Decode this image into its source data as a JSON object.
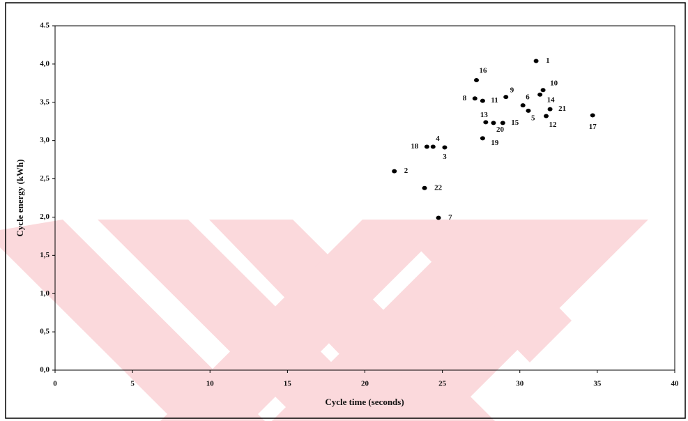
{
  "chart_data": {
    "type": "scatter",
    "x_label": "Cycle time (seconds)",
    "y_label": "Cycle energy (kWh)",
    "x": [
      31.05,
      21.9,
      25.15,
      24.4,
      30.55,
      30.2,
      24.75,
      27.1,
      29.1,
      31.5,
      27.6,
      31.7,
      27.8,
      31.3,
      28.9,
      27.2,
      34.7,
      24.0,
      27.6,
      28.3,
      31.95,
      23.85
    ],
    "values": [
      4.04,
      2.6,
      2.91,
      2.92,
      3.39,
      3.46,
      1.99,
      3.55,
      3.57,
      3.66,
      3.52,
      3.32,
      3.24,
      3.6,
      3.23,
      3.79,
      3.33,
      2.92,
      3.03,
      3.23,
      3.41,
      2.38
    ],
    "point_labels": [
      "1",
      "2",
      "3",
      "4",
      "5",
      "6",
      "7",
      "8",
      "9",
      "10",
      "11",
      "12",
      "13",
      "14",
      "15",
      "16",
      "17",
      "18",
      "19",
      "20",
      "21",
      "22"
    ],
    "color": "#000000",
    "xlim": [
      0,
      40
    ],
    "xticks": [
      0,
      5,
      10,
      15,
      20,
      25,
      30,
      35,
      40
    ],
    "ylim": [
      0,
      4.5
    ],
    "yticks": [
      {
        "value": 0,
        "label": "0,0"
      },
      {
        "value": 0.5,
        "label": "0,5"
      },
      {
        "value": 1,
        "label": "1,0"
      },
      {
        "value": 1.5,
        "label": "1,5"
      },
      {
        "value": 2,
        "label": "2,0"
      },
      {
        "value": 2.5,
        "label": "2,5"
      },
      {
        "value": 3,
        "label": "3,0"
      },
      {
        "value": 3.5,
        "label": "3,5"
      },
      {
        "value": 4,
        "label": "4,0"
      },
      {
        "value": 4.5,
        "label": "4.5"
      }
    ],
    "grid": false
  }
}
